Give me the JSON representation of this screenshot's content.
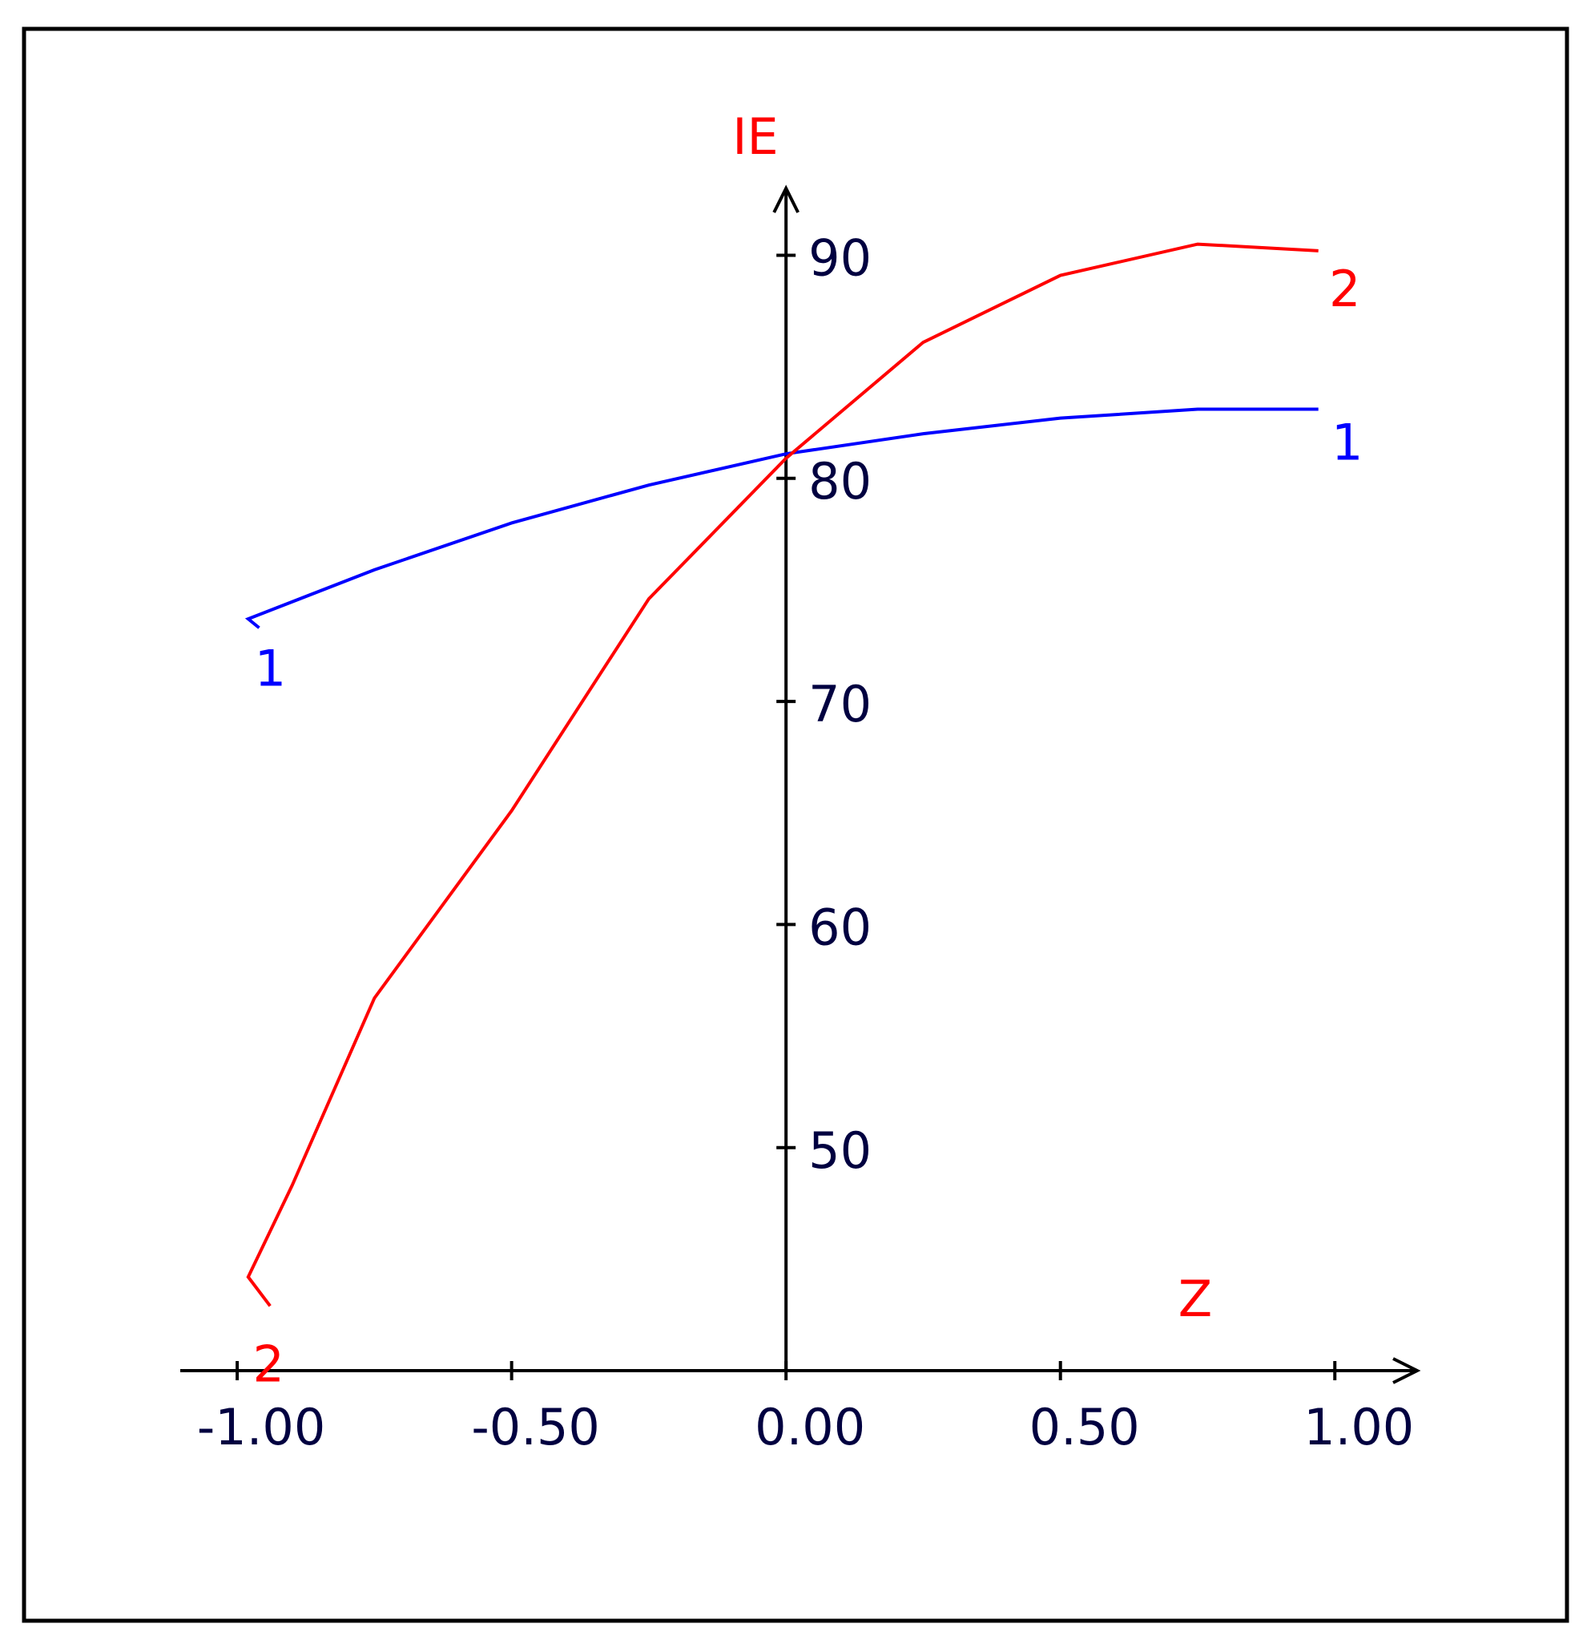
{
  "chart_data": {
    "type": "line",
    "x_label": "Z",
    "y_label": "IE",
    "xlim": [
      -1.06,
      1.15
    ],
    "ylim": [
      40,
      93
    ],
    "xticks": [
      {
        "value": -1,
        "label": "-1.00"
      },
      {
        "value": -0.5,
        "label": "-0.50"
      },
      {
        "value": 0,
        "label": "0.00"
      },
      {
        "value": 0.5,
        "label": "0.50"
      },
      {
        "value": 1,
        "label": "1.00"
      }
    ],
    "yticks": [
      50,
      60,
      70,
      80,
      90
    ],
    "series": [
      {
        "name": "1",
        "color": "#0000ff",
        "x": [
          -0.96,
          -0.98,
          -0.75,
          -0.5,
          -0.25,
          0,
          0.25,
          0.5,
          0.75,
          0.97
        ],
        "values": [
          73.3,
          73.7,
          75.9,
          78.0,
          79.7,
          81.1,
          82.0,
          82.7,
          83.1,
          83.1
        ]
      },
      {
        "name": "2",
        "color": "#ff0000",
        "x": [
          -0.94,
          -0.98,
          -0.9,
          -0.75,
          -0.5,
          -0.25,
          0,
          0.25,
          0.5,
          0.75,
          0.97
        ],
        "values": [
          42.9,
          44.2,
          48.3,
          56.7,
          65.1,
          74.6,
          80.9,
          86.1,
          89.1,
          90.5,
          90.2
        ]
      }
    ]
  }
}
